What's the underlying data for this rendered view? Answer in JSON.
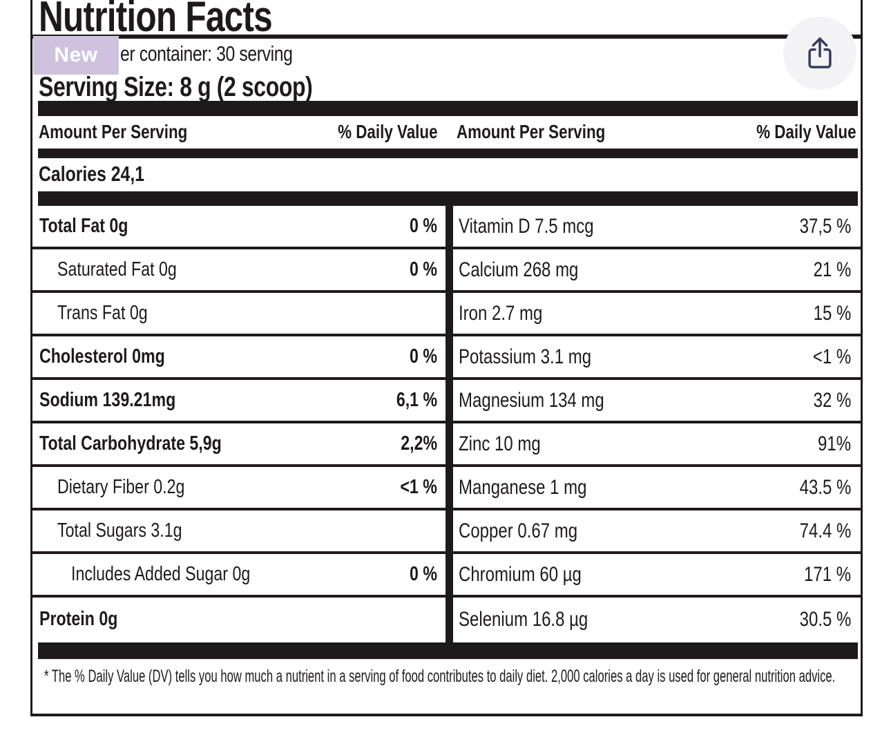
{
  "colors": {
    "label_ink": "#1e1a1b",
    "badge_bg": "#cfc2de",
    "badge_text": "#ffffff",
    "share_circle_bg": "#f3f3f5",
    "share_icon": "#363c58",
    "page_bg": "#ffffff"
  },
  "overlays": {
    "badge": {
      "label": "New"
    },
    "share": {
      "icon": "share-icon"
    }
  },
  "label": {
    "title": "Nutrition Facts",
    "container_line": "er container: 30 serving",
    "serving_size": "Serving Size: 8 g (2 scoop)",
    "headers": {
      "amount": "Amount Per Serving",
      "daily_value": "% Daily Value"
    },
    "calories": "Calories 24,1",
    "left_rows": [
      {
        "label": "Total Fat 0g",
        "value": "0 %",
        "style": "bold",
        "indent": 0
      },
      {
        "label": "Saturated Fat 0g",
        "value": "0 %",
        "style": "regular",
        "indent": 1
      },
      {
        "label": "Trans Fat 0g",
        "value": "",
        "style": "regular",
        "indent": 1
      },
      {
        "label": "Cholesterol 0mg",
        "value": "0 %",
        "style": "bold",
        "indent": 0
      },
      {
        "label": "Sodium 139.21mg",
        "value": "6,1 %",
        "style": "bold",
        "indent": 0
      },
      {
        "label": "Total Carbohydrate 5,9g",
        "value": "2,2%",
        "style": "bold",
        "indent": 0
      },
      {
        "label": "Dietary Fiber 0.2g",
        "value": "<1 %",
        "style": "regular",
        "indent": 1
      },
      {
        "label": "Total Sugars 3.1g",
        "value": "",
        "style": "regular",
        "indent": 1
      },
      {
        "label": "Includes Added Sugar 0g",
        "value": "0 %",
        "style": "regular",
        "indent": 2
      },
      {
        "label": "Protein 0g",
        "value": "",
        "style": "bold",
        "indent": 0
      }
    ],
    "right_rows": [
      {
        "label": "Vitamin D 7.5 mcg",
        "value": "37,5 %"
      },
      {
        "label": "Calcium 268 mg",
        "value": "21 %"
      },
      {
        "label": "Iron 2.7 mg",
        "value": "15 %"
      },
      {
        "label": "Potassium 3.1 mg",
        "value": "<1 %"
      },
      {
        "label": "Magnesium 134 mg",
        "value": "32 %"
      },
      {
        "label": "Zinc 10 mg",
        "value": "91%"
      },
      {
        "label": "Manganese 1 mg",
        "value": "43.5 %"
      },
      {
        "label": "Copper 0.67 mg",
        "value": "74.4 %"
      },
      {
        "label": "Chromium 60 µg",
        "value": "171 %"
      },
      {
        "label": "Selenium 16.8 µg",
        "value": "30.5 %"
      }
    ],
    "footnote": "* The % Daily Value (DV) tells you how much a nutrient in a serving of food contributes to daily diet. 2,000 calories a day is used for general nutrition advice."
  }
}
